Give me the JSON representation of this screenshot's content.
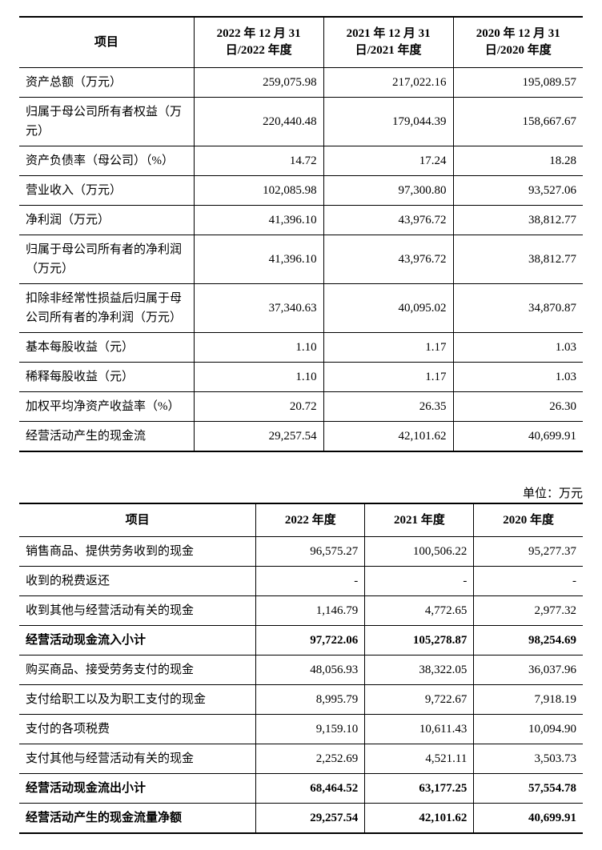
{
  "table1": {
    "headers": [
      "项目",
      "2022 年 12 月 31 日/2022 年度",
      "2021 年 12 月 31 日/2021 年度",
      "2020 年 12 月 31 日/2020 年度"
    ],
    "rows": [
      {
        "label": "资产总额（万元）",
        "v": [
          "259,075.98",
          "217,022.16",
          "195,089.57"
        ]
      },
      {
        "label": "归属于母公司所有者权益（万元）",
        "v": [
          "220,440.48",
          "179,044.39",
          "158,667.67"
        ]
      },
      {
        "label": "资产负债率（母公司）（%）",
        "v": [
          "14.72",
          "17.24",
          "18.28"
        ]
      },
      {
        "label": "营业收入（万元）",
        "v": [
          "102,085.98",
          "97,300.80",
          "93,527.06"
        ]
      },
      {
        "label": "净利润（万元）",
        "v": [
          "41,396.10",
          "43,976.72",
          "38,812.77"
        ]
      },
      {
        "label": "归属于母公司所有者的净利润（万元）",
        "v": [
          "41,396.10",
          "43,976.72",
          "38,812.77"
        ]
      },
      {
        "label": "扣除非经常性损益后归属于母公司所有者的净利润（万元）",
        "v": [
          "37,340.63",
          "40,095.02",
          "34,870.87"
        ]
      },
      {
        "label": "基本每股收益（元）",
        "v": [
          "1.10",
          "1.17",
          "1.03"
        ]
      },
      {
        "label": "稀释每股收益（元）",
        "v": [
          "1.10",
          "1.17",
          "1.03"
        ]
      },
      {
        "label": "加权平均净资产收益率（%）",
        "v": [
          "20.72",
          "26.35",
          "26.30"
        ]
      },
      {
        "label": "经营活动产生的现金流",
        "v": [
          "29,257.54",
          "42,101.62",
          "40,699.91"
        ]
      }
    ]
  },
  "unit_label": "单位：万元",
  "table2": {
    "headers": [
      "项目",
      "2022 年度",
      "2021 年度",
      "2020 年度"
    ],
    "rows": [
      {
        "label": "销售商品、提供劳务收到的现金",
        "v": [
          "96,575.27",
          "100,506.22",
          "95,277.37"
        ],
        "bold": false
      },
      {
        "label": "收到的税费返还",
        "v": [
          "-",
          "-",
          "-"
        ],
        "bold": false
      },
      {
        "label": "收到其他与经营活动有关的现金",
        "v": [
          "1,146.79",
          "4,772.65",
          "2,977.32"
        ],
        "bold": false
      },
      {
        "label": "经营活动现金流入小计",
        "v": [
          "97,722.06",
          "105,278.87",
          "98,254.69"
        ],
        "bold": true
      },
      {
        "label": "购买商品、接受劳务支付的现金",
        "v": [
          "48,056.93",
          "38,322.05",
          "36,037.96"
        ],
        "bold": false
      },
      {
        "label": "支付给职工以及为职工支付的现金",
        "v": [
          "8,995.79",
          "9,722.67",
          "7,918.19"
        ],
        "bold": false
      },
      {
        "label": "支付的各项税费",
        "v": [
          "9,159.10",
          "10,611.43",
          "10,094.90"
        ],
        "bold": false
      },
      {
        "label": "支付其他与经营活动有关的现金",
        "v": [
          "2,252.69",
          "4,521.11",
          "3,503.73"
        ],
        "bold": false
      },
      {
        "label": "经营活动现金流出小计",
        "v": [
          "68,464.52",
          "63,177.25",
          "57,554.78"
        ],
        "bold": true
      },
      {
        "label": "经营活动产生的现金流量净额",
        "v": [
          "29,257.54",
          "42,101.62",
          "40,699.91"
        ],
        "bold": true
      }
    ]
  }
}
